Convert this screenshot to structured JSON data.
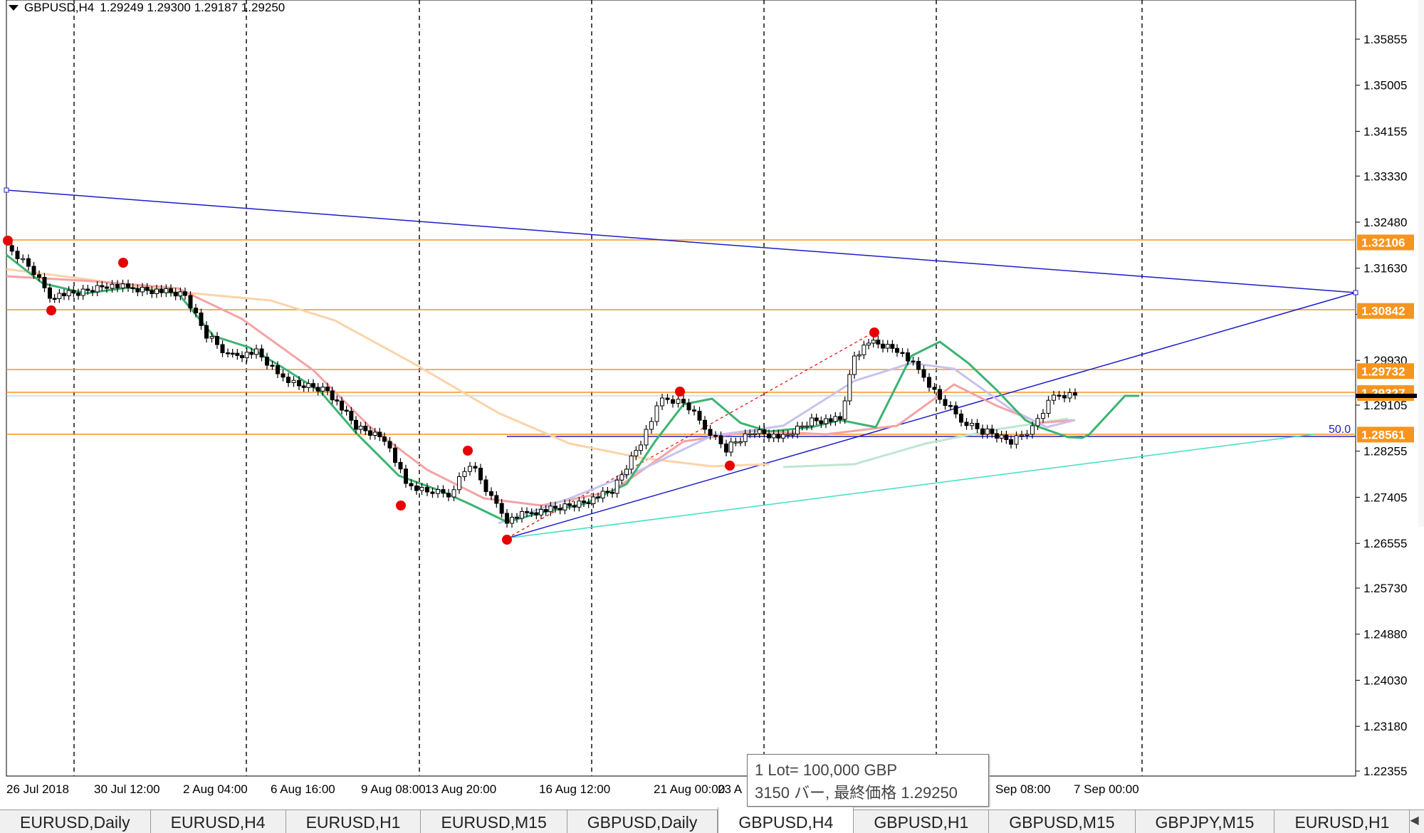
{
  "header": {
    "symbol": "GBPUSD,H4",
    "ohlc": "1.29249 1.29300 1.29187 1.29250"
  },
  "price_axis": {
    "ticks": [
      "1.35855",
      "1.35005",
      "1.34155",
      "1.33330",
      "1.32480",
      "1.31630",
      "1.30780",
      "1.29930",
      "1.29105",
      "1.28255",
      "1.27405",
      "1.26555",
      "1.25730",
      "1.24880",
      "1.24030",
      "1.23180",
      "1.22355"
    ],
    "level_tags": [
      {
        "label": "1.32106",
        "price": 1.32106,
        "color": "#f7941d"
      },
      {
        "label": "1.30842",
        "price": 1.30842,
        "color": "#f7941d"
      },
      {
        "label": "1.29732",
        "price": 1.29732,
        "color": "#f7941d"
      },
      {
        "label": "1.29327",
        "price": 1.29327,
        "color": "#f7941d"
      },
      {
        "label": "1.28561",
        "price": 1.28561,
        "color": "#f7941d"
      }
    ],
    "current_price": 1.2925
  },
  "time_axis": {
    "labels": [
      "26 Jul 2018",
      "30 Jul 12:00",
      "2 Aug 04:00",
      "6 Aug 16:00",
      "9 Aug 08:00",
      "13 Aug 20:00",
      "16 Aug 12:00",
      "21 Aug 00:00",
      "23 A",
      "Sep 08:00",
      "7 Sep 00:00"
    ]
  },
  "fib_label": "50.0",
  "tooltip": {
    "line1": "1 Lot= 100,000 GBP",
    "line2": "3150 バー, 最終価格 1.29250"
  },
  "tabs": [
    {
      "label": "EURUSD,Daily",
      "active": false
    },
    {
      "label": "EURUSD,H4",
      "active": false
    },
    {
      "label": "EURUSD,H1",
      "active": false
    },
    {
      "label": "EURUSD,M15",
      "active": false
    },
    {
      "label": "GBPUSD,Daily",
      "active": false
    },
    {
      "label": "GBPUSD,H4",
      "active": true
    },
    {
      "label": "GBPUSD,H1",
      "active": false
    },
    {
      "label": "GBPUSD,M15",
      "active": false
    },
    {
      "label": "GBPJPY,M15",
      "active": false
    },
    {
      "label": "EURUSD,H1",
      "active": false
    }
  ],
  "tab_nav": {
    "prev_icon": "◀",
    "next_icon": "▶"
  },
  "colors": {
    "candle": "#000000",
    "ma_fast": "#3cb371",
    "ma_pink": "#f4a3a3",
    "ma_peach": "#fcd3a8",
    "ma_lavender": "#c8c2ee",
    "ma_mint": "#bfe6d2",
    "trendline": "#1c1cc8",
    "support_line": "#40e0c0",
    "level_line": "#f7941d",
    "swing_marker": "#e60000"
  }
}
